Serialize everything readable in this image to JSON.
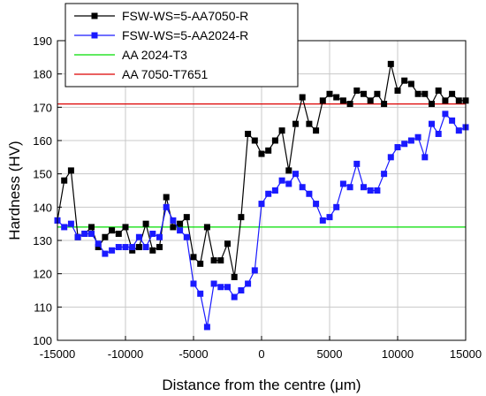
{
  "chart_data": {
    "type": "line",
    "xlabel": "Distance from the centre (μm)",
    "ylabel": "Hardness (HV)",
    "xlim": [
      -15000,
      15000
    ],
    "ylim": [
      100,
      190
    ],
    "xticks": [
      "-15000",
      "-10000",
      "-5000",
      "0",
      "5000",
      "10000",
      "15000"
    ],
    "yticks": [
      "100",
      "110",
      "120",
      "130",
      "140",
      "150",
      "160",
      "170",
      "180",
      "190"
    ],
    "grid": true,
    "legend_position": "top-left",
    "series": [
      {
        "name": "FSW-WS=5-AA7050-R",
        "color": "#000000",
        "marker": "square",
        "x": [
          -15000,
          -14500,
          -14000,
          -13500,
          -13000,
          -12500,
          -12000,
          -11500,
          -11000,
          -10500,
          -10000,
          -9500,
          -9000,
          -8500,
          -8000,
          -7500,
          -7000,
          -6500,
          -6000,
          -5500,
          -5000,
          -4500,
          -4000,
          -3500,
          -3000,
          -2500,
          -2000,
          -1500,
          -1000,
          -500,
          0,
          500,
          1000,
          1500,
          2000,
          2500,
          3000,
          3500,
          4000,
          4500,
          5000,
          5500,
          6000,
          6500,
          7000,
          7500,
          8000,
          8500,
          9000,
          9500,
          10000,
          10500,
          11000,
          11500,
          12000,
          12500,
          13000,
          13500,
          14000,
          14500,
          15000
        ],
        "y": [
          136,
          148,
          151,
          131,
          132,
          134,
          128,
          131,
          133,
          132,
          134,
          127,
          128,
          135,
          127,
          128,
          143,
          134,
          135,
          137,
          125,
          123,
          134,
          124,
          124,
          129,
          119,
          137,
          162,
          160,
          156,
          157,
          160,
          163,
          151,
          165,
          173,
          165,
          163,
          172,
          174,
          173,
          172,
          171,
          175,
          174,
          172,
          174,
          171,
          183,
          175,
          178,
          177,
          174,
          174,
          171,
          175,
          172,
          174,
          172,
          172
        ]
      },
      {
        "name": "FSW-WS=5-AA2024-R",
        "color": "#1a1aff",
        "marker": "square",
        "x": [
          -15000,
          -14500,
          -14000,
          -13500,
          -13000,
          -12500,
          -12000,
          -11500,
          -11000,
          -10500,
          -10000,
          -9500,
          -9000,
          -8500,
          -8000,
          -7500,
          -7000,
          -6500,
          -6000,
          -5500,
          -5000,
          -4500,
          -4000,
          -3500,
          -3000,
          -2500,
          -2000,
          -1500,
          -1000,
          -500,
          0,
          500,
          1000,
          1500,
          2000,
          2500,
          3000,
          3500,
          4000,
          4500,
          5000,
          5500,
          6000,
          6500,
          7000,
          7500,
          8000,
          8500,
          9000,
          9500,
          10000,
          10500,
          11000,
          11500,
          12000,
          12500,
          13000,
          13500,
          14000,
          14500,
          15000
        ],
        "y": [
          136,
          134,
          135,
          131,
          132,
          132,
          129,
          126,
          127,
          128,
          128,
          128,
          131,
          128,
          132,
          131,
          140,
          136,
          133,
          131,
          117,
          114,
          104,
          117,
          116,
          116,
          113,
          115,
          117,
          121,
          141,
          144,
          145,
          148,
          147,
          150,
          146,
          144,
          141,
          136,
          137,
          140,
          147,
          146,
          153,
          146,
          145,
          145,
          150,
          155,
          158,
          159,
          160,
          161,
          155,
          165,
          162,
          168,
          166,
          163,
          164
        ]
      },
      {
        "name": "AA 2024-T3",
        "color": "#00dd00",
        "marker": "none",
        "x": [
          -15000,
          15000
        ],
        "y": [
          134,
          134
        ]
      },
      {
        "name": "AA 7050-T7651",
        "color": "#dd0000",
        "marker": "none",
        "x": [
          -15000,
          15000
        ],
        "y": [
          171,
          171
        ]
      }
    ]
  }
}
